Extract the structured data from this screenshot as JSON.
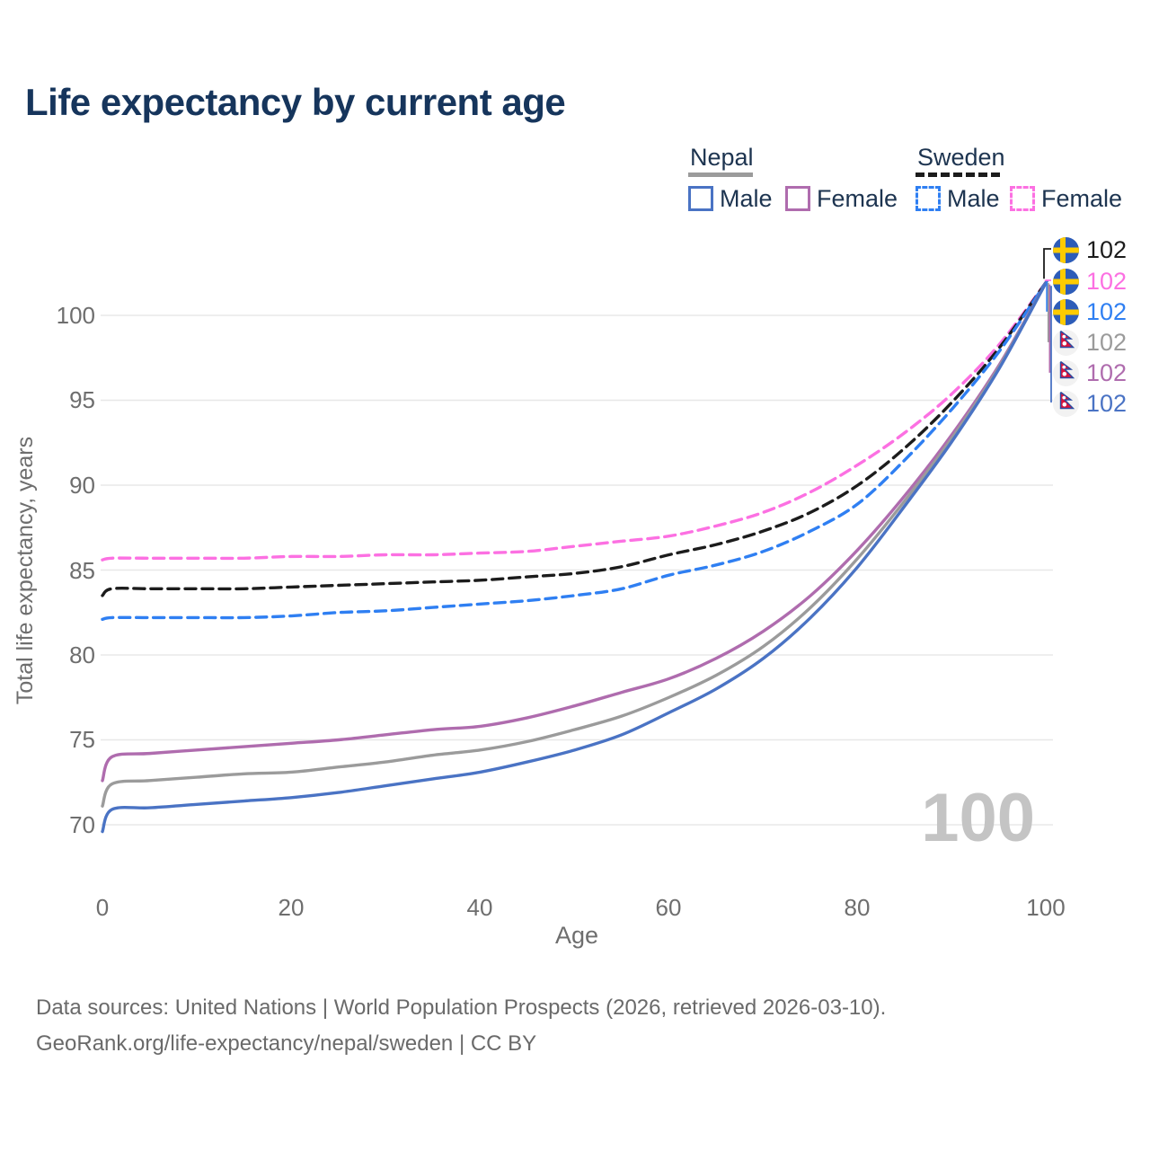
{
  "title": "Life expectancy by current age",
  "legend": {
    "nepal": {
      "label": "Nepal",
      "both_color": "#9b9b9b",
      "male": "Male",
      "male_color": "#4a73c4",
      "female": "Female",
      "female_color": "#af6cae"
    },
    "sweden": {
      "label": "Sweden",
      "both_color": "#1c1c1c",
      "male": "Male",
      "male_color": "#2f7ff2",
      "female": "Female",
      "female_color": "#fc70e2"
    }
  },
  "axes": {
    "x": {
      "label": "Age",
      "ticks": [
        "0",
        "20",
        "40",
        "60",
        "80",
        "100"
      ]
    },
    "y": {
      "label": "Total life expectancy, years",
      "ticks": [
        "100",
        "95",
        "90",
        "85",
        "80",
        "75",
        "70"
      ]
    }
  },
  "watermark": "100",
  "footer": {
    "line1": "Data sources: United Nations | World Population Prospects (2026, retrieved 2026-03-10).",
    "line2": "GeoRank.org/life-expectancy/nepal/sweden | CC BY"
  },
  "chart_data": {
    "type": "line",
    "title": "Life expectancy by current age",
    "xlabel": "Age",
    "ylabel": "Total life expectancy, years",
    "xlim": [
      0,
      100
    ],
    "ylim": [
      69,
      103
    ],
    "grid": "horizontal",
    "x_ticks": [
      0,
      20,
      40,
      60,
      80,
      100
    ],
    "y_ticks": [
      70,
      75,
      80,
      85,
      90,
      95,
      100
    ],
    "x": [
      0,
      1,
      5,
      10,
      15,
      20,
      25,
      30,
      35,
      40,
      45,
      50,
      55,
      60,
      65,
      70,
      75,
      80,
      85,
      90,
      95,
      100
    ],
    "series": [
      {
        "name": "Sweden Female",
        "country": "Sweden",
        "sex": "female",
        "color": "#fc70e2",
        "dash": "dashed",
        "values": [
          85.6,
          85.7,
          85.7,
          85.7,
          85.7,
          85.8,
          85.8,
          85.9,
          85.9,
          86.0,
          86.1,
          86.4,
          86.7,
          87.0,
          87.6,
          88.4,
          89.6,
          91.2,
          93.1,
          95.4,
          98.3,
          102.0
        ]
      },
      {
        "name": "Sweden (both sexes)",
        "country": "Sweden",
        "sex": "both",
        "color": "#1c1c1c",
        "dash": "dashed",
        "values": [
          83.5,
          83.9,
          83.9,
          83.9,
          83.9,
          84.0,
          84.1,
          84.2,
          84.3,
          84.4,
          84.6,
          84.8,
          85.2,
          85.9,
          86.5,
          87.3,
          88.4,
          90.0,
          92.2,
          94.9,
          98.1,
          102.0
        ]
      },
      {
        "name": "Sweden Male",
        "country": "Sweden",
        "sex": "male",
        "color": "#2f7ff2",
        "dash": "dashed",
        "values": [
          82.1,
          82.2,
          82.2,
          82.2,
          82.2,
          82.3,
          82.5,
          82.6,
          82.8,
          83.0,
          83.2,
          83.5,
          83.9,
          84.7,
          85.3,
          86.1,
          87.3,
          88.9,
          91.5,
          94.5,
          97.9,
          102.0
        ]
      },
      {
        "name": "Nepal Female",
        "country": "Nepal",
        "sex": "female",
        "color": "#af6cae",
        "dash": "solid",
        "values": [
          72.6,
          74.0,
          74.2,
          74.4,
          74.6,
          74.8,
          75.0,
          75.3,
          75.6,
          75.8,
          76.3,
          77.0,
          77.8,
          78.6,
          79.8,
          81.4,
          83.5,
          86.2,
          89.4,
          93.0,
          97.1,
          102.0
        ]
      },
      {
        "name": "Nepal (both sexes)",
        "country": "Nepal",
        "sex": "both",
        "color": "#9b9b9b",
        "dash": "solid",
        "values": [
          71.1,
          72.4,
          72.6,
          72.8,
          73.0,
          73.1,
          73.4,
          73.7,
          74.1,
          74.4,
          74.9,
          75.6,
          76.4,
          77.5,
          78.8,
          80.5,
          82.8,
          85.7,
          89.1,
          92.8,
          97.0,
          102.0
        ]
      },
      {
        "name": "Nepal Male",
        "country": "Nepal",
        "sex": "male",
        "color": "#4a73c4",
        "dash": "solid",
        "values": [
          69.6,
          70.9,
          71.0,
          71.2,
          71.4,
          71.6,
          71.9,
          72.3,
          72.7,
          73.1,
          73.7,
          74.4,
          75.3,
          76.6,
          78.0,
          79.8,
          82.2,
          85.2,
          88.8,
          92.6,
          96.9,
          102.0
        ]
      }
    ],
    "end_labels": [
      {
        "country": "Sweden",
        "series": "Sweden (both sexes)",
        "value": "102",
        "color": "#1c1c1c"
      },
      {
        "country": "Sweden",
        "series": "Sweden Female",
        "value": "102",
        "color": "#fc70e2"
      },
      {
        "country": "Sweden",
        "series": "Sweden Male",
        "value": "102",
        "color": "#2f7ff2"
      },
      {
        "country": "Nepal",
        "series": "Nepal (both sexes)",
        "value": "102",
        "color": "#9b9b9b"
      },
      {
        "country": "Nepal",
        "series": "Nepal Female",
        "value": "102",
        "color": "#af6cae"
      },
      {
        "country": "Nepal",
        "series": "Nepal Male",
        "value": "102",
        "color": "#4a73c4"
      }
    ]
  }
}
